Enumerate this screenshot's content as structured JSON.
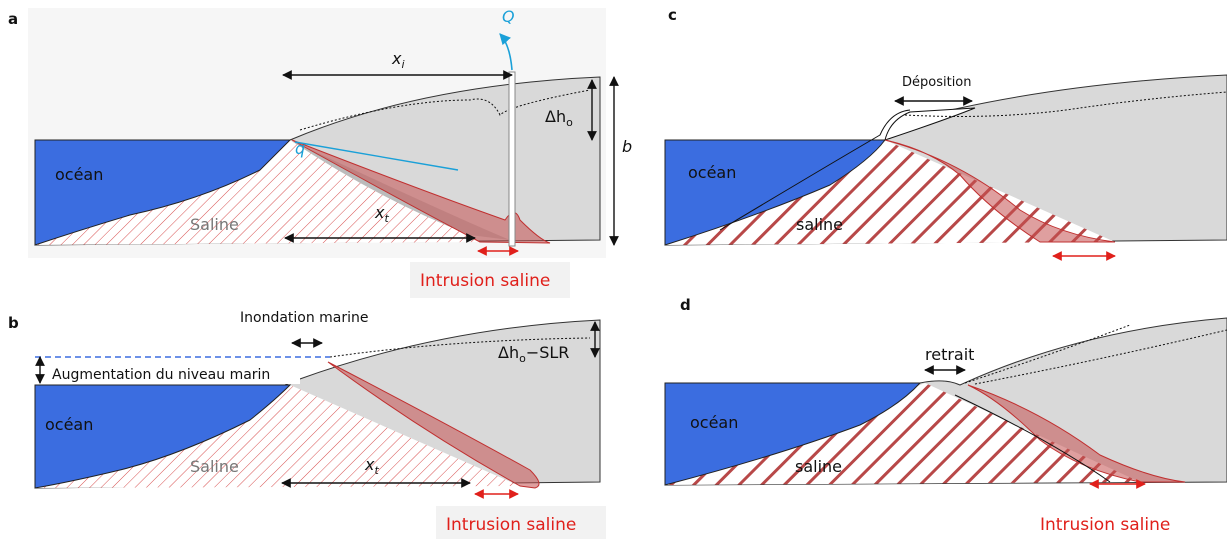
{
  "panels": [
    {
      "letter": "a",
      "ocean": "océan",
      "saline": "Saline",
      "flow": "Q",
      "seep": "q",
      "xi": {
        "main": "x",
        "sub": "i"
      },
      "xt": {
        "main": "x",
        "sub": "t"
      },
      "head": {
        "main": "Δh",
        "sub": "o"
      },
      "depth": "b",
      "intrusion": "Intrusion saline"
    },
    {
      "letter": "b",
      "ocean": "océan",
      "saline": "Saline",
      "flooding": "Inondation marine",
      "rise": "Augmentation du niveau marin",
      "xt": {
        "main": "x",
        "sub": "t"
      },
      "head": {
        "main": "Δh",
        "sub": "o",
        "tail": "−SLR"
      },
      "intrusion": "Intrusion saline"
    },
    {
      "letter": "c",
      "ocean": "océan",
      "saline": "saline",
      "deposition": "Déposition"
    },
    {
      "letter": "d",
      "ocean": "océan",
      "saline": "saline",
      "retreat": "retrait",
      "intrusion": "Intrusion saline"
    }
  ]
}
